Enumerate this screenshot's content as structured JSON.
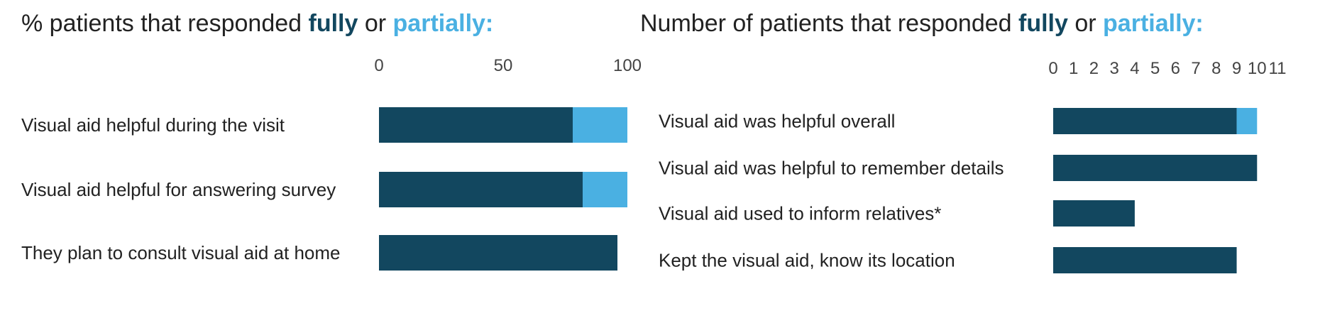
{
  "colors": {
    "fully": "#12475f",
    "partially": "#4ab0e2"
  },
  "chart_data": [
    {
      "type": "bar",
      "orientation": "horizontal",
      "stacked": true,
      "title": {
        "prefix": "% patients that responded ",
        "fully": "fully",
        "middle": " or ",
        "partially": "partially:"
      },
      "xlim": [
        0,
        100
      ],
      "xticks": [
        0,
        50,
        100
      ],
      "categories": [
        "Visual aid helpful during the visit",
        "Visual aid helpful for answering survey",
        "They plan to consult visual aid at home"
      ],
      "series": [
        {
          "name": "fully",
          "values": [
            78,
            82,
            96
          ]
        },
        {
          "name": "partially",
          "values": [
            22,
            18,
            0
          ]
        }
      ]
    },
    {
      "type": "bar",
      "orientation": "horizontal",
      "stacked": true,
      "title": {
        "prefix": "Number of patients that responded ",
        "fully": "fully",
        "middle": " or ",
        "partially": "partially:"
      },
      "xlim": [
        0,
        11
      ],
      "xticks": [
        0,
        1,
        2,
        3,
        4,
        5,
        6,
        7,
        8,
        9,
        10,
        11
      ],
      "categories": [
        "Visual aid was helpful overall",
        "Visual aid was helpful to remember details",
        "Visual aid used to inform relatives*",
        "Kept the visual aid, know its location"
      ],
      "series": [
        {
          "name": "fully",
          "values": [
            9,
            10,
            4,
            9
          ]
        },
        {
          "name": "partially",
          "values": [
            1,
            0,
            0,
            0
          ]
        }
      ]
    }
  ]
}
